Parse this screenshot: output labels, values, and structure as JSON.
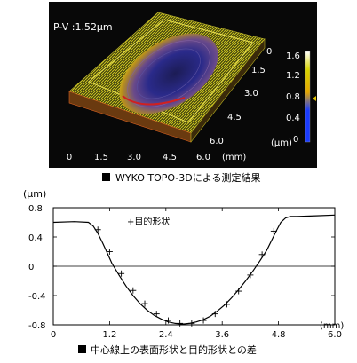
{
  "figure_top": {
    "pv_label": "P-V :1.52µm",
    "x_ticks": [
      "0",
      "1.5",
      "3.0",
      "4.5",
      "6.0"
    ],
    "x_unit": "(mm)",
    "y_ticks": [
      "0",
      "1.5",
      "3.0",
      "4.5",
      "6.0"
    ],
    "z_unit": "(µm)",
    "colorbar": {
      "ticks": [
        "1.6",
        "1.2",
        "0.8",
        "0.4",
        "0"
      ],
      "range": [
        0,
        1.6
      ],
      "indicator_value": 0.8,
      "colors": [
        "#1a3cff",
        "#e3a500",
        "#d8d400",
        "#ffffff"
      ]
    },
    "caption": "WYKO TOPO-3Dによる測定結果"
  },
  "chart_data": {
    "type": "line",
    "title": "",
    "ylabel": "(µm)",
    "xlabel": "(mm)",
    "xlim": [
      0,
      6.0
    ],
    "ylim": [
      -0.8,
      0.8
    ],
    "x_ticks": [
      0,
      1.2,
      2.4,
      3.6,
      4.8,
      6.0
    ],
    "y_ticks": [
      0.8,
      0.4,
      0,
      -0.4,
      -0.8
    ],
    "x_tick_labels": [
      "0",
      "1.2",
      "2.4",
      "3.6",
      "4.8",
      "6.0"
    ],
    "y_tick_labels": [
      "0.8",
      "0.4",
      "0",
      "-0.4",
      "-0.8"
    ],
    "legend": "+目的形状",
    "series": [
      {
        "style": "solid",
        "x": [
          0,
          0.45,
          0.75,
          0.85,
          0.95,
          1.05,
          1.15,
          1.25,
          1.4,
          1.55,
          1.7,
          1.85,
          2.0,
          2.15,
          2.3,
          2.45,
          2.6,
          2.75,
          2.9,
          3.05,
          3.2,
          3.35,
          3.5,
          3.65,
          3.8,
          3.95,
          4.1,
          4.25,
          4.4,
          4.55,
          4.65,
          4.75,
          4.85,
          4.95,
          5.05,
          5.2,
          5.6,
          6.0
        ],
        "y": [
          0.6,
          0.61,
          0.6,
          0.55,
          0.45,
          0.32,
          0.18,
          0.04,
          -0.12,
          -0.27,
          -0.4,
          -0.51,
          -0.6,
          -0.67,
          -0.72,
          -0.76,
          -0.78,
          -0.79,
          -0.78,
          -0.76,
          -0.73,
          -0.68,
          -0.61,
          -0.53,
          -0.43,
          -0.32,
          -0.2,
          -0.07,
          0.07,
          0.22,
          0.35,
          0.48,
          0.6,
          0.66,
          0.68,
          0.68,
          0.69,
          0.7
        ]
      },
      {
        "style": "marker-plus",
        "x": [
          0.95,
          1.2,
          1.45,
          1.7,
          1.95,
          2.2,
          2.45,
          2.7,
          2.95,
          3.2,
          3.45,
          3.7,
          3.95,
          4.2,
          4.45,
          4.7
        ],
        "y": [
          0.5,
          0.2,
          -0.1,
          -0.33,
          -0.51,
          -0.65,
          -0.74,
          -0.78,
          -0.78,
          -0.74,
          -0.65,
          -0.52,
          -0.34,
          -0.12,
          0.16,
          0.48
        ]
      }
    ],
    "caption": "中心線上の表面形状と目的形状との差"
  }
}
